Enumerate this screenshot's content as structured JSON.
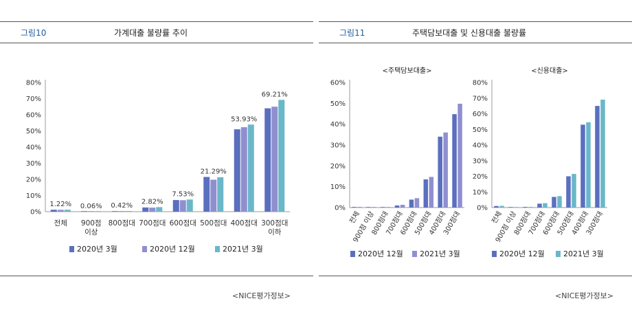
{
  "figures": [
    {
      "label": "그림10",
      "title": "가계대출 불량률 추이",
      "source": "<NICE평가정보>"
    },
    {
      "label": "그림11",
      "title": "주택담보대출 및 신용대출 불량률",
      "source": "<NICE평가정보>"
    }
  ],
  "colors": {
    "s1": "#5b6fbf",
    "s2": "#8f8fd0",
    "s3": "#6ab7c9"
  },
  "chart_data": [
    {
      "type": "bar",
      "title": "",
      "categories": [
        "전체",
        "900점\n이상",
        "800점대",
        "700점대",
        "600점대",
        "500점대",
        "400점대",
        "300점대\n이하"
      ],
      "series": [
        {
          "name": "2020년 3월",
          "values": [
            1.2,
            0.05,
            0.35,
            2.6,
            7.2,
            21.5,
            51.0,
            64.0
          ]
        },
        {
          "name": "2020년 12월",
          "values": [
            1.15,
            0.05,
            0.38,
            2.5,
            7.1,
            19.8,
            52.3,
            65.0
          ]
        },
        {
          "name": "2021년 3월",
          "values": [
            1.22,
            0.06,
            0.42,
            2.82,
            7.53,
            21.29,
            53.93,
            69.21
          ]
        }
      ],
      "data_labels": [
        "1.22%",
        "0.06%",
        "0.42%",
        "2.82%",
        "7.53%",
        "21.29%",
        "53.93%",
        "69.21%"
      ],
      "yticks": [
        "0%",
        "10%",
        "20%",
        "30%",
        "40%",
        "50%",
        "60%",
        "70%",
        "80%"
      ],
      "ylim": [
        0,
        80
      ],
      "legend": "bottom"
    },
    {
      "type": "bar",
      "title": "<주택담보대출>",
      "categories": [
        "전체",
        "900점 이상",
        "800점대",
        "700점대",
        "600점대",
        "500점대",
        "400점대",
        "300점대"
      ],
      "series": [
        {
          "name": "2020년 12월",
          "values": [
            0.3,
            0.0,
            0.1,
            1.0,
            3.8,
            13.5,
            34.0,
            44.8
          ]
        },
        {
          "name": "2021년 3월",
          "values": [
            0.3,
            0.0,
            0.1,
            1.3,
            4.5,
            14.7,
            36.0,
            49.8
          ]
        }
      ],
      "yticks": [
        "0%",
        "10%",
        "20%",
        "30%",
        "40%",
        "50%",
        "60%"
      ],
      "ylim": [
        0,
        60
      ],
      "legend": "bottom"
    },
    {
      "type": "bar",
      "title": "<신용대출>",
      "categories": [
        "전체",
        "900점 이상",
        "800점대",
        "700점대",
        "600점대",
        "500점대",
        "400점대",
        "300점대"
      ],
      "series": [
        {
          "name": "2020년 12월",
          "values": [
            1.0,
            0.05,
            0.4,
            2.5,
            6.8,
            20.0,
            53.0,
            65.0
          ]
        },
        {
          "name": "2021년 3월",
          "values": [
            1.1,
            0.05,
            0.4,
            2.8,
            7.3,
            21.5,
            54.5,
            69.0
          ]
        }
      ],
      "yticks": [
        "0%",
        "10%",
        "20%",
        "30%",
        "40%",
        "50%",
        "60%",
        "70%",
        "80%"
      ],
      "ylim": [
        0,
        80
      ],
      "legend": "bottom"
    }
  ]
}
